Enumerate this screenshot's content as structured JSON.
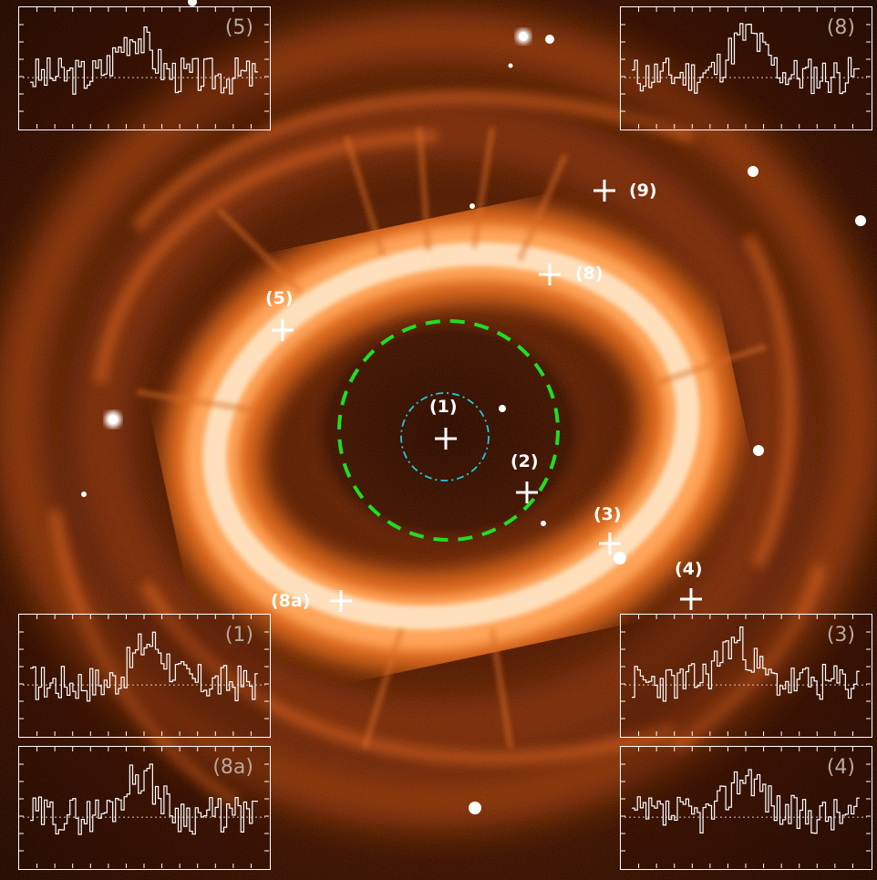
{
  "markers": [
    {
      "id": "m1",
      "label": "(1)"
    },
    {
      "id": "m2",
      "label": "(2)"
    },
    {
      "id": "m3",
      "label": "(3)"
    },
    {
      "id": "m4",
      "label": "(4)"
    },
    {
      "id": "m5",
      "label": "(5)"
    },
    {
      "id": "m8",
      "label": "(8)"
    },
    {
      "id": "m8a",
      "label": "(8a)"
    },
    {
      "id": "m9",
      "label": "(9)"
    }
  ],
  "insets": [
    {
      "id": "i5",
      "label": "(5)"
    },
    {
      "id": "i8",
      "label": "(8)"
    },
    {
      "id": "i1",
      "label": "(1)"
    },
    {
      "id": "i3",
      "label": "(3)"
    },
    {
      "id": "i8a",
      "label": "(8a)"
    },
    {
      "id": "i4",
      "label": "(4)"
    }
  ],
  "colors": {
    "background": "#1a0600",
    "nebula_ring": "#ffe2bf",
    "nebula_glow": "#e0681a",
    "green_dashed_circle": "#22dd22",
    "cyan_dashdot_circle": "#22c8d8",
    "marker": "#ffffff",
    "inset_label": "#b8a8a0"
  }
}
